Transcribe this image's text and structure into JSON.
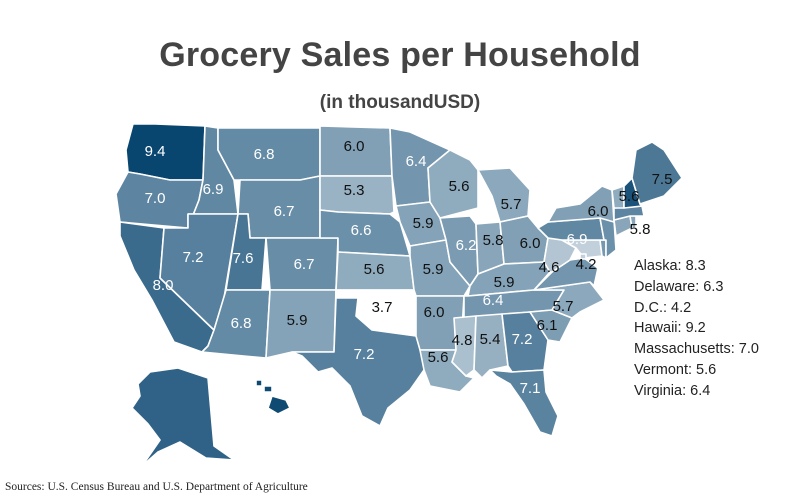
{
  "title": "Grocery Sales per Household",
  "subtitle": "(in thousandUSD)",
  "source": "Sources: U.S. Census Bureau and U.S. Department of Agriculture",
  "colors": {
    "low": "#ffffff",
    "high": "#08456f",
    "border": "#ffffff",
    "title": "#444444"
  },
  "chart_data": {
    "type": "choropleth",
    "title": "Grocery Sales per Household",
    "subtitle": "(in thousandUSD)",
    "value_range": [
      3.7,
      9.4
    ],
    "states": [
      {
        "state": "WA",
        "value": 9.4,
        "label": "9.4"
      },
      {
        "state": "OR",
        "value": 7.0,
        "label": "7.0"
      },
      {
        "state": "CA",
        "value": 8.0,
        "label": "8.0"
      },
      {
        "state": "ID",
        "value": 6.9,
        "label": "6.9"
      },
      {
        "state": "NV",
        "value": 7.2,
        "label": "7.2"
      },
      {
        "state": "MT",
        "value": 6.8,
        "label": "6.8"
      },
      {
        "state": "WY",
        "value": 6.7,
        "label": "6.7"
      },
      {
        "state": "UT",
        "value": 7.6,
        "label": "7.6"
      },
      {
        "state": "AZ",
        "value": 6.8,
        "label": "6.8"
      },
      {
        "state": "CO",
        "value": 6.7,
        "label": "6.7"
      },
      {
        "state": "NM",
        "value": 5.9,
        "label": "5.9"
      },
      {
        "state": "ND",
        "value": 6.0,
        "label": "6.0"
      },
      {
        "state": "SD",
        "value": 5.3,
        "label": "5.3"
      },
      {
        "state": "NE",
        "value": 6.6,
        "label": "6.6"
      },
      {
        "state": "KS",
        "value": 5.6,
        "label": "5.6"
      },
      {
        "state": "OK",
        "value": 3.7,
        "label": "3.7"
      },
      {
        "state": "TX",
        "value": 7.2,
        "label": "7.2"
      },
      {
        "state": "MN",
        "value": 6.4,
        "label": "6.4"
      },
      {
        "state": "IA",
        "value": 5.9,
        "label": "5.9"
      },
      {
        "state": "MO",
        "value": 5.9,
        "label": "5.9"
      },
      {
        "state": "AR",
        "value": 6.0,
        "label": "6.0"
      },
      {
        "state": "LA",
        "value": 5.6,
        "label": "5.6"
      },
      {
        "state": "WI",
        "value": 5.6,
        "label": "5.6"
      },
      {
        "state": "IL",
        "value": 6.2,
        "label": "6.2"
      },
      {
        "state": "MI",
        "value": 5.7,
        "label": "5.7"
      },
      {
        "state": "IN",
        "value": 5.8,
        "label": "5.8"
      },
      {
        "state": "OH",
        "value": 6.0,
        "label": "6.0"
      },
      {
        "state": "KY",
        "value": 5.9,
        "label": "5.9"
      },
      {
        "state": "TN",
        "value": 6.4,
        "label": "6.4"
      },
      {
        "state": "MS",
        "value": 4.8,
        "label": "4.8"
      },
      {
        "state": "AL",
        "value": 5.4,
        "label": "5.4"
      },
      {
        "state": "GA",
        "value": 7.2,
        "label": "7.2"
      },
      {
        "state": "FL",
        "value": 7.1,
        "label": "7.1"
      },
      {
        "state": "SC",
        "value": 6.1,
        "label": "6.1"
      },
      {
        "state": "NC",
        "value": 5.7,
        "label": "5.7"
      },
      {
        "state": "VA",
        "value": 6.4,
        "label": null
      },
      {
        "state": "WV",
        "value": 4.6,
        "label": "4.6"
      },
      {
        "state": "MD",
        "value": 4.2,
        "label": "4.2"
      },
      {
        "state": "DE",
        "value": 6.3,
        "label": null
      },
      {
        "state": "DC",
        "value": 4.2,
        "label": null
      },
      {
        "state": "PA",
        "value": 6.9,
        "label": "6.9"
      },
      {
        "state": "NJ",
        "value": 6.6,
        "label": null
      },
      {
        "state": "NY",
        "value": 6.0,
        "label": "6.0"
      },
      {
        "state": "CT",
        "value": 5.8,
        "label": "5.8"
      },
      {
        "state": "RI",
        "value": 5.8,
        "label": null
      },
      {
        "state": "MA",
        "value": 7.0,
        "label": null
      },
      {
        "state": "VT",
        "value": 5.6,
        "label": "5.6"
      },
      {
        "state": "NH",
        "value": 8.9,
        "label": null
      },
      {
        "state": "ME",
        "value": 7.5,
        "label": "7.5"
      },
      {
        "state": "AK",
        "value": 8.3,
        "label": null
      },
      {
        "state": "HI",
        "value": 9.2,
        "label": null
      }
    ],
    "annotations": [
      {
        "text": "Alaska: 8.3",
        "state": "Alaska",
        "value": 8.3
      },
      {
        "text": "Delaware: 6.3",
        "state": "Delaware",
        "value": 6.3
      },
      {
        "text": "D.C.: 4.2",
        "state": "D.C.",
        "value": 4.2
      },
      {
        "text": "Hawaii: 9.2",
        "state": "Hawaii",
        "value": 9.2
      },
      {
        "text": "Massachusetts: 7.0",
        "state": "Massachusetts",
        "value": 7.0
      },
      {
        "text": "Vermont: 5.6",
        "state": "Vermont",
        "value": 5.6
      },
      {
        "text": "Virginia: 6.4",
        "state": "Virginia",
        "value": 6.4
      }
    ]
  }
}
